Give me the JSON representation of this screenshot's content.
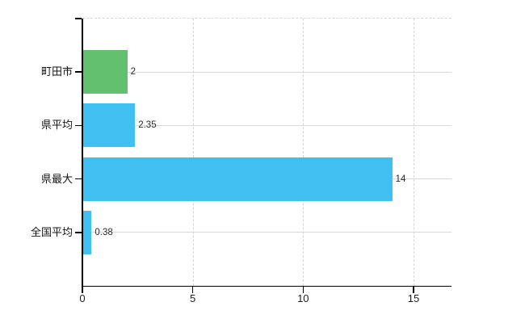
{
  "chart_data": {
    "type": "bar",
    "orientation": "horizontal",
    "title": "",
    "xlabel": "",
    "ylabel": "",
    "categories": [
      "町田市",
      "県平均",
      "県最大",
      "全国平均"
    ],
    "values": [
      2,
      2.35,
      14,
      0.38
    ],
    "value_labels": [
      "2",
      "2.35",
      "14",
      "0.38"
    ],
    "bar_colors": [
      "#63c06e",
      "#3fc0f0",
      "#3fc0f0",
      "#3fc0f0"
    ],
    "xlim": [
      0,
      16.72
    ],
    "x_ticks": [
      0,
      5,
      10,
      15
    ],
    "x_tick_labels": [
      "0",
      "5",
      "10",
      "15"
    ],
    "grid": true,
    "legend_position": "none"
  },
  "colors": {
    "bar_green": "#63c06e",
    "bar_blue": "#3fc0f0",
    "axis": "#000000",
    "h_gridline": "#d8dbd3",
    "v_gridline": "#d7d2d7",
    "top_border": "#dcd5dc",
    "category_text": "#141414",
    "value_text": "#2a2a2a",
    "tick_text": "#1f1f1f",
    "background": "#ffffff"
  }
}
